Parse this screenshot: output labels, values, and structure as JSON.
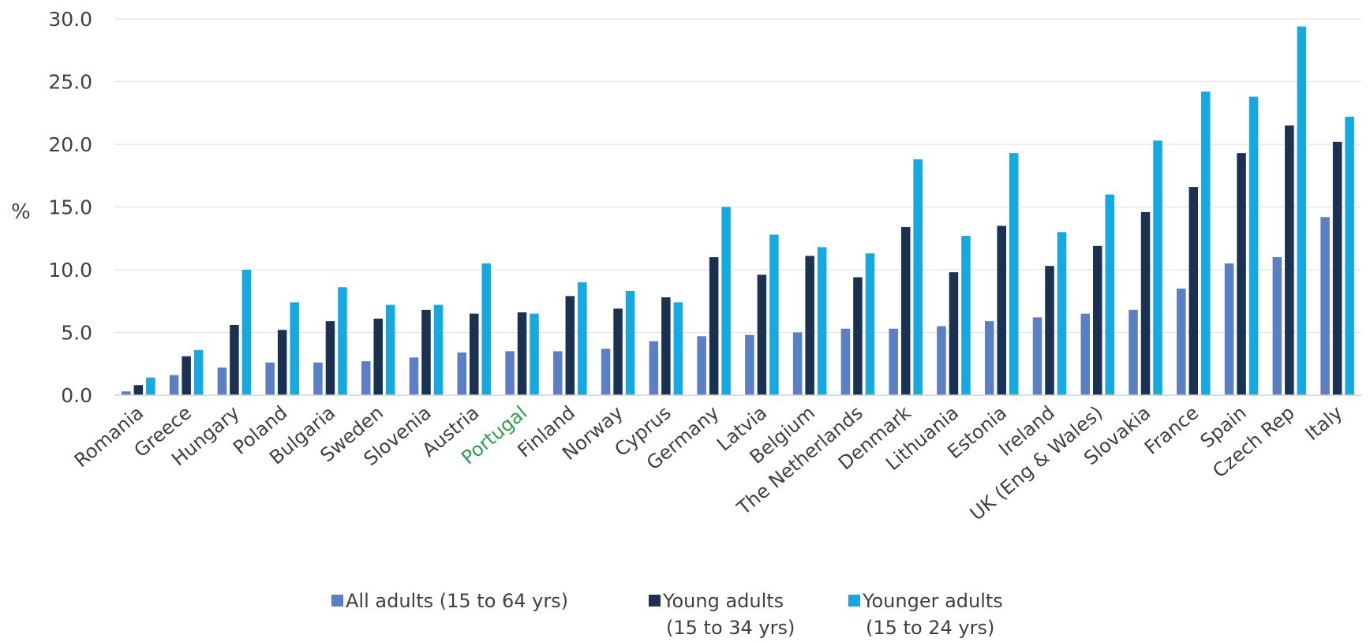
{
  "chart_data": {
    "type": "bar",
    "ylabel": "%",
    "ylim": [
      0,
      30
    ],
    "yticks": [
      "0.0",
      "5.0",
      "10.0",
      "15.0",
      "20.0",
      "25.0",
      "30.0"
    ],
    "grid": true,
    "legend_position": "bottom",
    "categories": [
      "Romania",
      "Greece",
      "Hungary",
      "Poland",
      "Bulgaria",
      "Sweden",
      "Slovenia",
      "Austria",
      "Portugal",
      "Finland",
      "Norway",
      "Cyprus",
      "Germany",
      "Latvia",
      "Belgium",
      "The Netherlands",
      "Denmark",
      "Lithuania",
      "Estonia",
      "Ireland",
      "UK (Eng & Wales)",
      "Slovakia",
      "France",
      "Spain",
      "Czech Rep",
      "Italy"
    ],
    "highlight_category": "Portugal",
    "highlight_color": "#2e9e4f",
    "series": [
      {
        "name": "All adults (15 to 64 yrs)",
        "legend_lines": [
          "All adults (15 to 64 yrs)"
        ],
        "color": "#5b7fc4",
        "values": [
          0.3,
          1.6,
          2.2,
          2.6,
          2.6,
          2.7,
          3.0,
          3.4,
          3.5,
          3.5,
          3.7,
          4.3,
          4.7,
          4.8,
          5.0,
          5.3,
          5.3,
          5.5,
          5.9,
          6.2,
          6.5,
          6.8,
          8.5,
          10.5,
          11.0,
          14.2
        ]
      },
      {
        "name": "Young adults (15 to 34 yrs)",
        "legend_lines": [
          "Young adults",
          "(15 to 34 yrs)"
        ],
        "color": "#1a3152",
        "values": [
          0.8,
          3.1,
          5.6,
          5.2,
          5.9,
          6.1,
          6.8,
          6.5,
          6.6,
          7.9,
          6.9,
          7.8,
          11.0,
          9.6,
          11.1,
          9.4,
          13.4,
          9.8,
          13.5,
          10.3,
          11.9,
          14.6,
          16.6,
          19.3,
          21.5,
          20.2
        ]
      },
      {
        "name": "Younger adults (15 to 24 yrs)",
        "legend_lines": [
          "Younger adults",
          "(15 to 24 yrs)"
        ],
        "color": "#16a8e0",
        "values": [
          1.4,
          3.6,
          10.0,
          7.4,
          8.6,
          7.2,
          7.2,
          10.5,
          6.5,
          9.0,
          8.3,
          7.4,
          15.0,
          12.8,
          11.8,
          11.3,
          18.8,
          12.7,
          19.3,
          13.0,
          16.0,
          20.3,
          24.2,
          23.8,
          29.4,
          22.2
        ]
      }
    ]
  }
}
